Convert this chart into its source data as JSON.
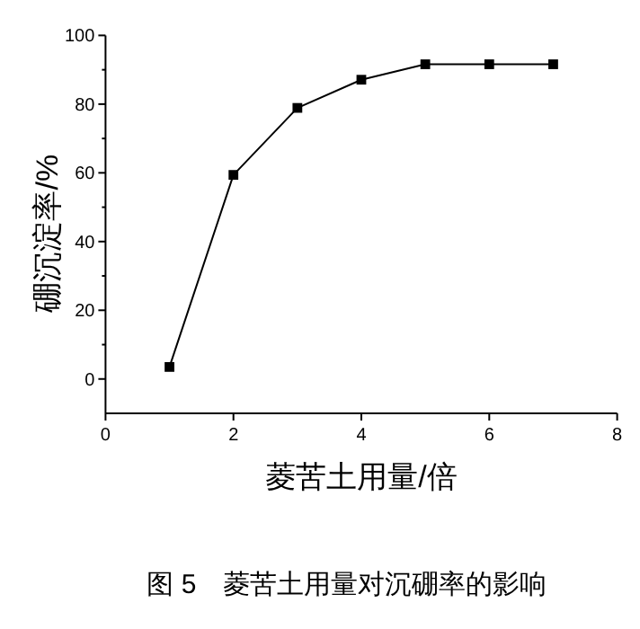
{
  "chart_data": {
    "type": "line",
    "xlabel": "菱苦土用量/倍",
    "ylabel": "硼沉淀率/%",
    "x": [
      1,
      2,
      3,
      4,
      5,
      6,
      7
    ],
    "series": [
      {
        "color": "#000000",
        "values": [
          3.5,
          59.4,
          78.9,
          87.1,
          91.6,
          91.6,
          91.6
        ]
      }
    ],
    "marker": "square",
    "line_style": "solid",
    "xlim": [
      0,
      8
    ],
    "xticks": [
      0,
      2,
      4,
      6,
      8
    ],
    "ylim": [
      -10,
      100
    ],
    "yticks": [
      0,
      20,
      40,
      60,
      80,
      100
    ],
    "annotations": [
      "图 5　菱苦土用量对沉硼率的影响"
    ]
  }
}
